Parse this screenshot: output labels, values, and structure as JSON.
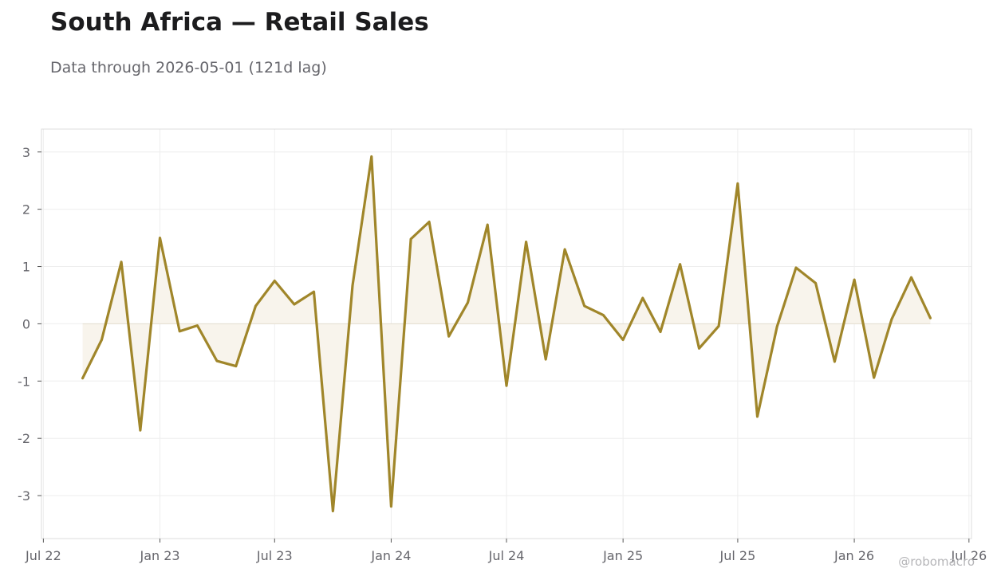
{
  "title": "South Africa — Retail Sales",
  "subtitle": "Data through 2026-05-01 (121d lag)",
  "watermark": "@robomacro",
  "colors": {
    "line": "#A0862A",
    "fill": "#F8F4EC",
    "grid": "#EEEEEE",
    "frame": "#DDDDDD"
  },
  "chart_data": {
    "type": "line",
    "title": "South Africa — Retail Sales",
    "subtitle": "Data through 2026-05-01 (121d lag)",
    "xlabel": "",
    "ylabel": "",
    "ylim": [
      -3.75,
      3.4
    ],
    "xlim": [
      "2022-06-28",
      "2026-07-05"
    ],
    "grid": true,
    "area_fill_to_zero": true,
    "x_ticks": [
      {
        "date": "2022-07-01",
        "label": "Jul 22"
      },
      {
        "date": "2023-01-01",
        "label": "Jan 23"
      },
      {
        "date": "2023-07-01",
        "label": "Jul 23"
      },
      {
        "date": "2024-01-01",
        "label": "Jan 24"
      },
      {
        "date": "2024-07-01",
        "label": "Jul 24"
      },
      {
        "date": "2025-01-01",
        "label": "Jan 25"
      },
      {
        "date": "2025-07-01",
        "label": "Jul 25"
      },
      {
        "date": "2026-01-01",
        "label": "Jan 26"
      },
      {
        "date": "2026-07-01",
        "label": "Jul 26"
      }
    ],
    "y_ticks": [
      {
        "value": 3,
        "label": "3"
      },
      {
        "value": 2,
        "label": "2"
      },
      {
        "value": 1,
        "label": "1"
      },
      {
        "value": 0,
        "label": "0"
      },
      {
        "value": -1,
        "label": "-1"
      },
      {
        "value": -2,
        "label": "-2"
      },
      {
        "value": -3,
        "label": "-3"
      }
    ],
    "series": [
      {
        "x": [
          "2022-09-01",
          "2022-10-01",
          "2022-11-01",
          "2022-12-01",
          "2023-01-01",
          "2023-02-01",
          "2023-03-01",
          "2023-04-01",
          "2023-05-01",
          "2023-06-01",
          "2023-07-01",
          "2023-08-01",
          "2023-09-01",
          "2023-10-01",
          "2023-11-01",
          "2023-12-01",
          "2024-01-01",
          "2024-02-01",
          "2024-03-01",
          "2024-04-01",
          "2024-05-01",
          "2024-06-01",
          "2024-07-01",
          "2024-08-01",
          "2024-09-01",
          "2024-10-01",
          "2024-11-01",
          "2024-12-01",
          "2025-01-01",
          "2025-02-01",
          "2025-03-01",
          "2025-04-01",
          "2025-05-01",
          "2025-06-01",
          "2025-07-01",
          "2025-08-01",
          "2025-09-01",
          "2025-10-01",
          "2025-11-01",
          "2025-12-01",
          "2026-01-01",
          "2026-02-01",
          "2026-03-01",
          "2026-04-01",
          "2026-05-01"
        ],
        "values": [
          -0.95,
          -0.28,
          1.08,
          -1.86,
          1.5,
          -0.13,
          -0.03,
          -0.65,
          -0.74,
          0.31,
          0.75,
          0.34,
          0.56,
          -3.27,
          0.67,
          2.92,
          -3.19,
          1.48,
          1.78,
          -0.22,
          0.37,
          1.73,
          -1.08,
          1.43,
          -0.62,
          1.3,
          0.31,
          0.15,
          -0.28,
          0.45,
          -0.14,
          1.04,
          -0.43,
          -0.04,
          2.45,
          -1.62,
          -0.05,
          0.98,
          0.71,
          -0.66,
          0.77,
          -0.94,
          0.08,
          0.81,
          0.1
        ]
      }
    ]
  }
}
